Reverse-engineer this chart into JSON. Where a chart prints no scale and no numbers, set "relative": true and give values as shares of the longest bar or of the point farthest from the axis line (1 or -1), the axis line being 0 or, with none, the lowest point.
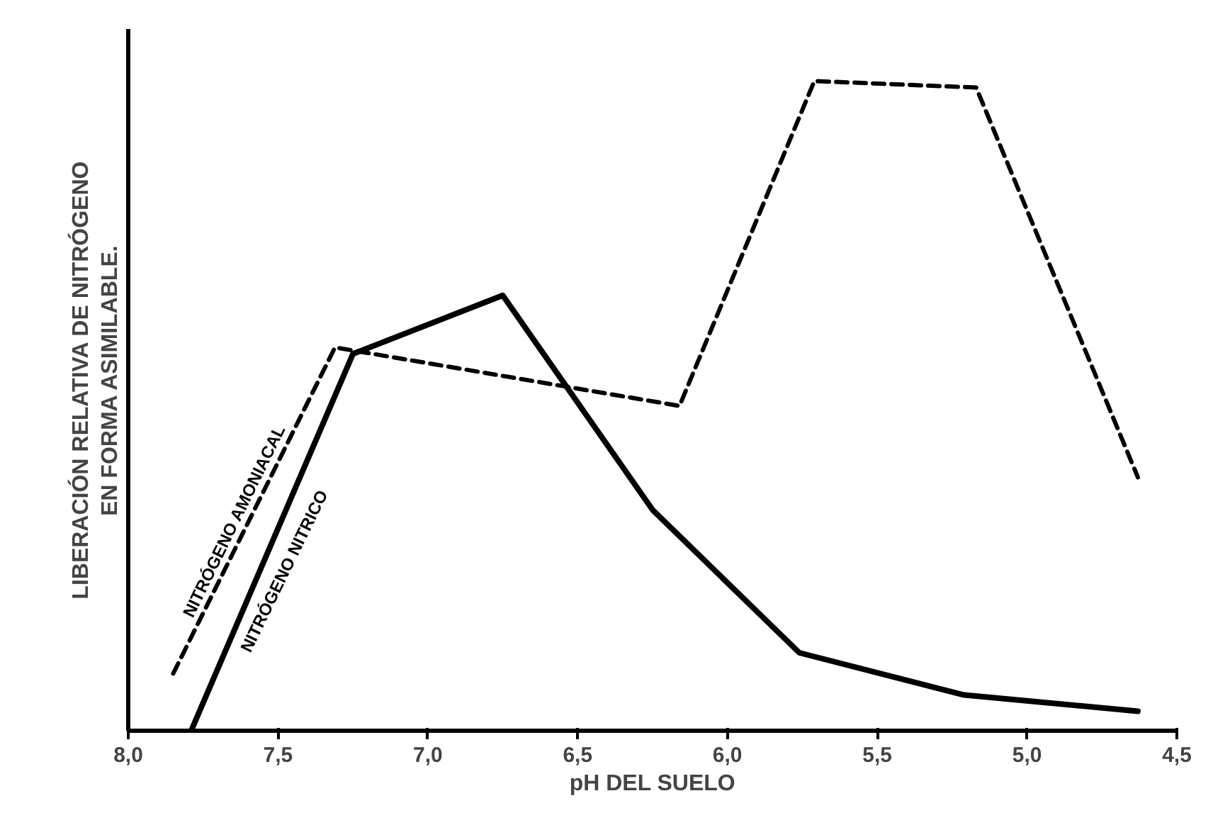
{
  "chart_data": {
    "type": "line",
    "relative": true,
    "xlabel": "pH DEL SUELO",
    "ylabel": "LIBERACIÓN RELATIVA DE NITRÓGENO\nEN FORMA ASIMILABLE.",
    "xlim": [
      8.0,
      4.5
    ],
    "xticks": [
      {
        "value": 8.0,
        "label": "8,0"
      },
      {
        "value": 7.5,
        "label": "7,5"
      },
      {
        "value": 7.0,
        "label": "7,0"
      },
      {
        "value": 6.5,
        "label": "6,5"
      },
      {
        "value": 6.0,
        "label": "6,0"
      },
      {
        "value": 5.5,
        "label": "5,5"
      },
      {
        "value": 5.0,
        "label": "5,0"
      },
      {
        "value": 4.5,
        "label": "4,5"
      }
    ],
    "grid": false,
    "marker": "none",
    "series": [
      {
        "name": "NITRÓGENO AMONIACAL",
        "color": "#000000",
        "line_style": "dashed",
        "x": [
          7.85,
          7.31,
          6.16,
          5.71,
          5.17,
          4.63
        ],
        "values": [
          0.088,
          0.59,
          0.5,
          1,
          0.99,
          0.39
        ]
      },
      {
        "name": "NITRÓGENO NITRICO",
        "color": "#000000",
        "line_style": "solid",
        "x": [
          7.79,
          7.25,
          6.75,
          6.25,
          5.76,
          5.21,
          4.63
        ],
        "values": [
          0,
          0.58,
          0.67,
          0.34,
          0.12,
          0.055,
          0.03
        ]
      }
    ]
  }
}
